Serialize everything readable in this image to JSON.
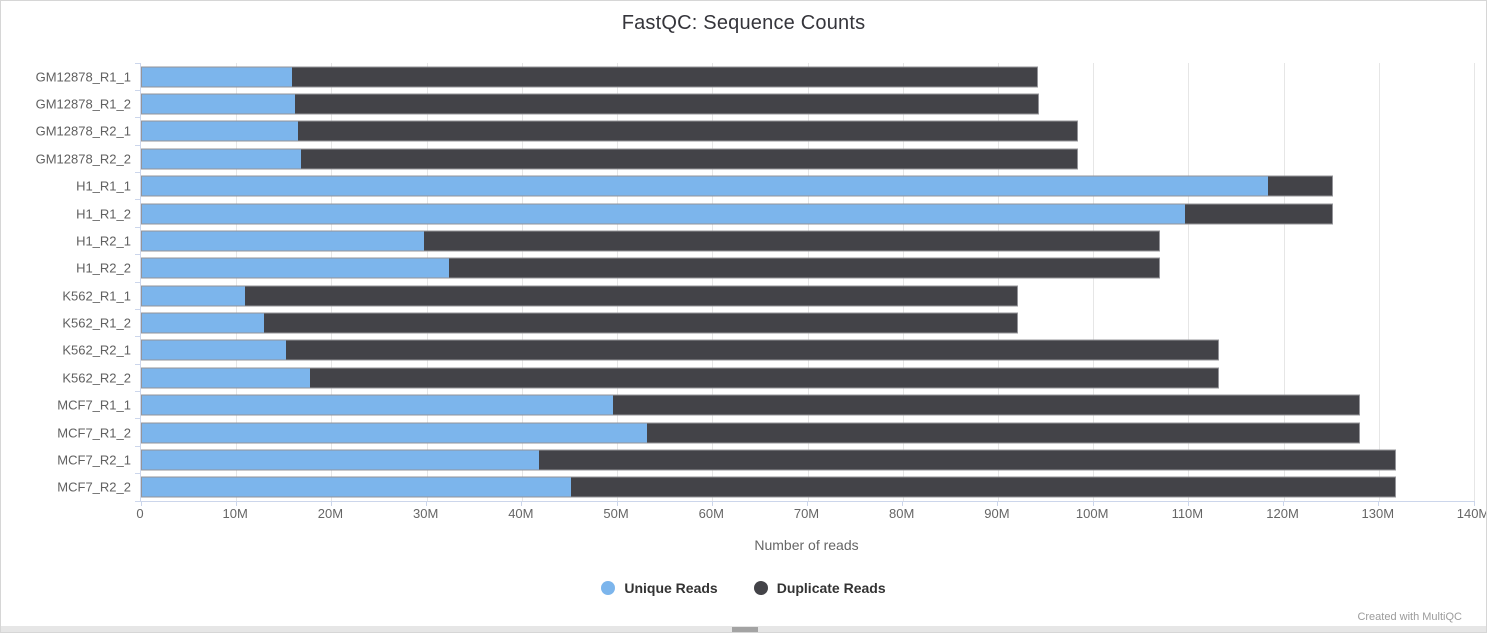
{
  "page": {
    "title": "FastQC: Sequence Counts",
    "footer_credit": "Created with MultiQC"
  },
  "chart_data": {
    "type": "bar",
    "orientation": "horizontal",
    "stacked": true,
    "title": "FastQC: Sequence Counts",
    "xlabel": "Number of reads",
    "ylabel": "",
    "grid": true,
    "legend_position": "bottom",
    "xmax_millions": 140,
    "x_tick_labels": [
      "0",
      "10M",
      "20M",
      "30M",
      "40M",
      "50M",
      "60M",
      "70M",
      "80M",
      "90M",
      "100M",
      "110M",
      "120M",
      "130M",
      "140M"
    ],
    "categories": [
      "GM12878_R1_1",
      "GM12878_R1_2",
      "GM12878_R2_1",
      "GM12878_R2_2",
      "H1_R1_1",
      "H1_R1_2",
      "H1_R2_1",
      "H1_R2_2",
      "K562_R1_1",
      "K562_R1_2",
      "K562_R2_1",
      "K562_R2_2",
      "MCF7_R1_1",
      "MCF7_R1_2",
      "MCF7_R2_1",
      "MCF7_R2_2"
    ],
    "series": [
      {
        "name": "Unique Reads",
        "color": "#7cb5ec",
        "values_millions": [
          15.8,
          16.1,
          16.4,
          16.7,
          118.5,
          109.7,
          29.7,
          32.3,
          10.8,
          12.8,
          15.2,
          17.7,
          49.5,
          53.1,
          41.8,
          45.1
        ]
      },
      {
        "name": "Duplicate Reads",
        "color": "#434348",
        "values_millions": [
          78.4,
          78.2,
          82.0,
          81.7,
          6.7,
          15.5,
          77.3,
          74.7,
          81.3,
          79.3,
          98.0,
          95.5,
          78.5,
          74.9,
          90.0,
          86.7
        ]
      }
    ],
    "totals_millions": [
      94.2,
      94.3,
      98.4,
      98.4,
      125.2,
      125.2,
      107.0,
      107.0,
      92.1,
      92.1,
      113.2,
      113.2,
      128.0,
      128.0,
      131.8,
      131.8
    ]
  },
  "colors": {
    "unique": "#7cb5ec",
    "duplicate": "#434348",
    "gridline": "#e6e6e6",
    "axis_line": "#ccd6eb",
    "axis_text": "#666666",
    "title_text": "#35353b"
  }
}
